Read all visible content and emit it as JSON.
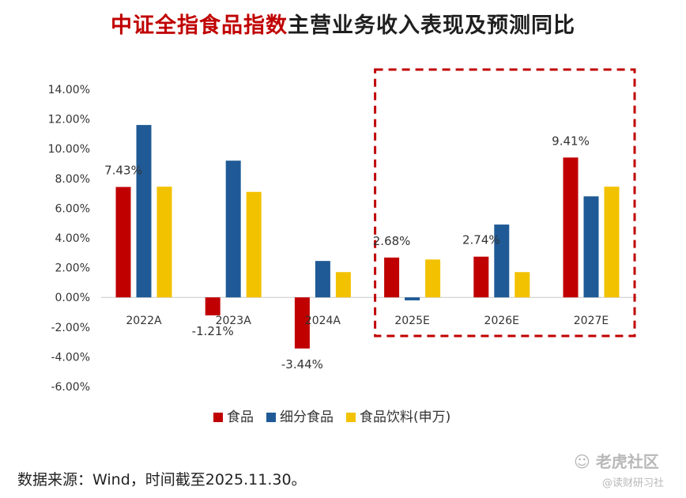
{
  "title": {
    "part_red": "中证全指食品指数",
    "part_dark": "主营业务收入表现及预测同比"
  },
  "chart_data": {
    "type": "bar",
    "title": "中证全指食品指数主营业务收入表现及预测同比",
    "categories": [
      "2022A",
      "2023A",
      "2024A",
      "2025E",
      "2026E",
      "2027E"
    ],
    "series": [
      {
        "name": "食品",
        "color": "#c00000",
        "values": [
          7.43,
          -1.21,
          -3.44,
          2.68,
          2.74,
          9.41
        ]
      },
      {
        "name": "细分食品",
        "color": "#1f5a96",
        "values": [
          11.6,
          9.2,
          2.45,
          -0.2,
          4.9,
          6.8
        ]
      },
      {
        "name": "食品饮料(申万)",
        "color": "#f2c200",
        "values": [
          7.45,
          7.1,
          1.7,
          2.55,
          1.7,
          7.45
        ]
      }
    ],
    "data_labels": [
      {
        "category": "2022A",
        "series": "食品",
        "text": "7.43%"
      },
      {
        "category": "2023A",
        "series": "食品",
        "text": "-1.21%"
      },
      {
        "category": "2024A",
        "series": "食品",
        "text": "-3.44%"
      },
      {
        "category": "2025E",
        "series": "食品",
        "text": "2.68%"
      },
      {
        "category": "2026E",
        "series": "食品",
        "text": "2.74%"
      },
      {
        "category": "2027E",
        "series": "食品",
        "text": "9.41%"
      }
    ],
    "yticks": [
      "14.00%",
      "12.00%",
      "10.00%",
      "8.00%",
      "6.00%",
      "4.00%",
      "2.00%",
      "0.00%",
      "-2.00%",
      "-4.00%",
      "-6.00%"
    ],
    "ylim": [
      -6,
      14
    ],
    "grid": false,
    "legend_position": "bottom",
    "highlight": {
      "categories": [
        "2025E",
        "2026E",
        "2027E"
      ],
      "style": "dashed-box",
      "color": "#c00000"
    }
  },
  "source": "数据来源：Wind，时间截至2025.11.30。",
  "watermark": {
    "logo": "老虎社区",
    "sub": "@读财研习社"
  }
}
